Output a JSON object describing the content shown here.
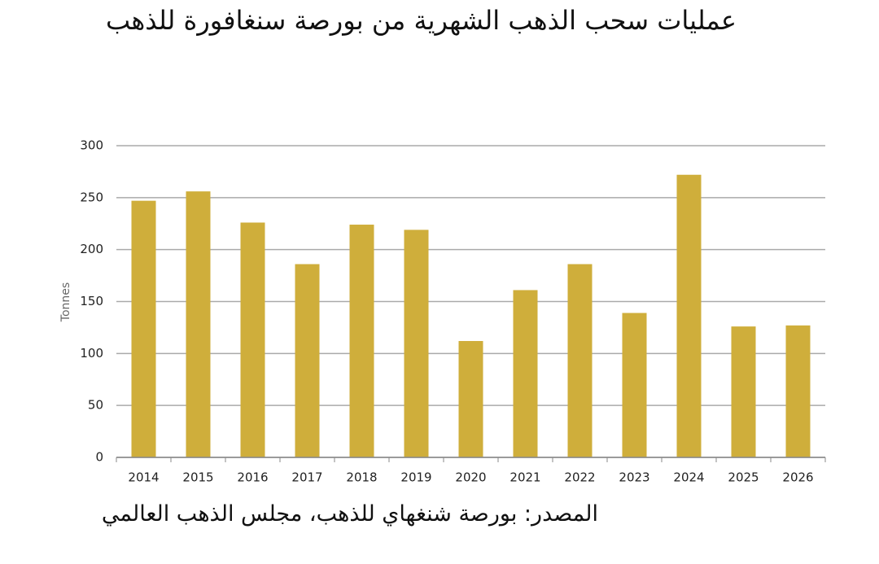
{
  "chart_data": {
    "type": "bar",
    "title": "عمليات سحب الذهب الشهرية من بورصة سنغافورة للذهب",
    "source": "المصدر: بورصة شنغهاي للذهب، مجلس الذهب العالمي",
    "y_label": "Tonnes",
    "categories": [
      "2014",
      "2015",
      "2016",
      "2017",
      "2018",
      "2019",
      "2020",
      "2021",
      "2022",
      "2023",
      "2024",
      "2025",
      "2026"
    ],
    "values": [
      247,
      256,
      226,
      186,
      224,
      219,
      112,
      161,
      186,
      139,
      272,
      126,
      127
    ],
    "color": "#cfae3b",
    "ylim": [
      0,
      300
    ],
    "yticks": [
      0,
      50,
      100,
      150,
      200,
      250,
      300
    ],
    "grid": true
  }
}
